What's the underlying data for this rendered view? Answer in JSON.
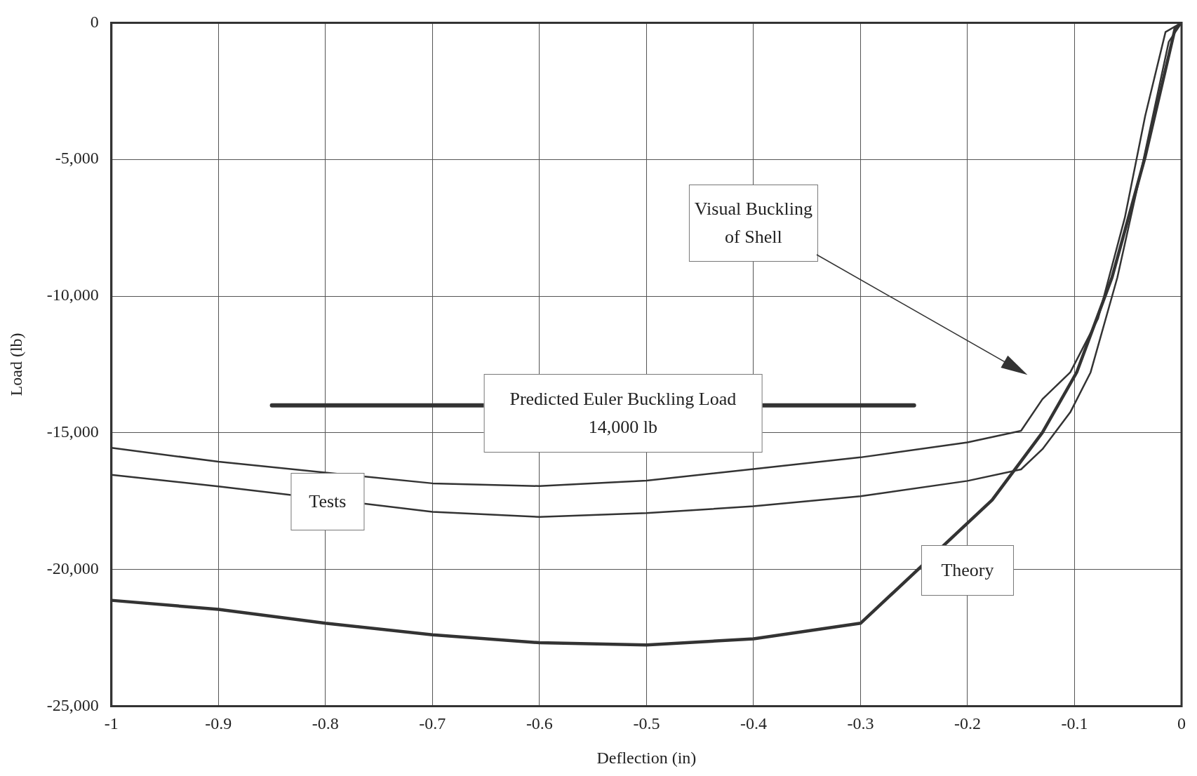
{
  "chart_data": {
    "type": "line",
    "xlabel": "Deflection (in)",
    "ylabel": "Load (lb)",
    "xlim": [
      -1,
      0
    ],
    "ylim": [
      -25000,
      0
    ],
    "xticks": [
      -1,
      -0.9,
      -0.8,
      -0.7,
      -0.6,
      -0.5,
      -0.4,
      -0.3,
      -0.2,
      -0.1,
      0
    ],
    "yticks": [
      0,
      {
        "value": -5000,
        "label": "-5,000"
      },
      {
        "value": -10000,
        "label": "-10,000"
      },
      {
        "value": -15000,
        "label": "-15,000"
      },
      {
        "value": -20000,
        "label": "-20,000"
      },
      {
        "value": -25000,
        "label": "-25,000"
      }
    ],
    "grid": true,
    "legend": false,
    "marker": "none",
    "line_style": "solid",
    "series": [
      {
        "color": "#333333",
        "x": [
          -1,
          -0.9,
          -0.7,
          -0.6,
          -0.5,
          -0.4,
          -0.3,
          -0.2,
          -0.15,
          -0.13,
          -0.104,
          -0.078,
          -0.053,
          -0.034,
          -0.015,
          0
        ],
        "values": [
          -15550,
          -16060,
          -16850,
          -16950,
          -16750,
          -16330,
          -15900,
          -15350,
          -14930,
          -13770,
          -12790,
          -10820,
          -7130,
          -3410,
          -340,
          0
        ]
      },
      {
        "color": "#333333",
        "x": [
          -1,
          -0.9,
          -0.7,
          -0.6,
          -0.5,
          -0.4,
          -0.3,
          -0.2,
          -0.15,
          -0.13,
          -0.104,
          -0.085,
          -0.06,
          -0.037,
          -0.012,
          0
        ],
        "values": [
          -16540,
          -16960,
          -17890,
          -18080,
          -17940,
          -17690,
          -17320,
          -16760,
          -16340,
          -15600,
          -14250,
          -12790,
          -9320,
          -5270,
          -700,
          0
        ]
      },
      {
        "color": "#333333",
        "x": [
          -1,
          -0.9,
          -0.8,
          -0.7,
          -0.6,
          -0.5,
          -0.4,
          -0.3,
          -0.177,
          -0.13,
          -0.098,
          -0.065,
          -0.034,
          -0.006,
          0
        ],
        "values": [
          -21130,
          -21460,
          -21970,
          -22390,
          -22680,
          -22760,
          -22540,
          -21970,
          -17460,
          -14990,
          -12790,
          -9320,
          -4900,
          -200,
          0
        ]
      },
      {
        "color": "#333333",
        "x": [
          -0.85,
          -0.25
        ],
        "values": [
          -14000,
          -14000
        ]
      }
    ],
    "annotations": [
      "Predicted Euler Buckling Load\n14,000 lb",
      "Tests",
      "Theory",
      "Visual Buckling\nof Shell"
    ]
  }
}
